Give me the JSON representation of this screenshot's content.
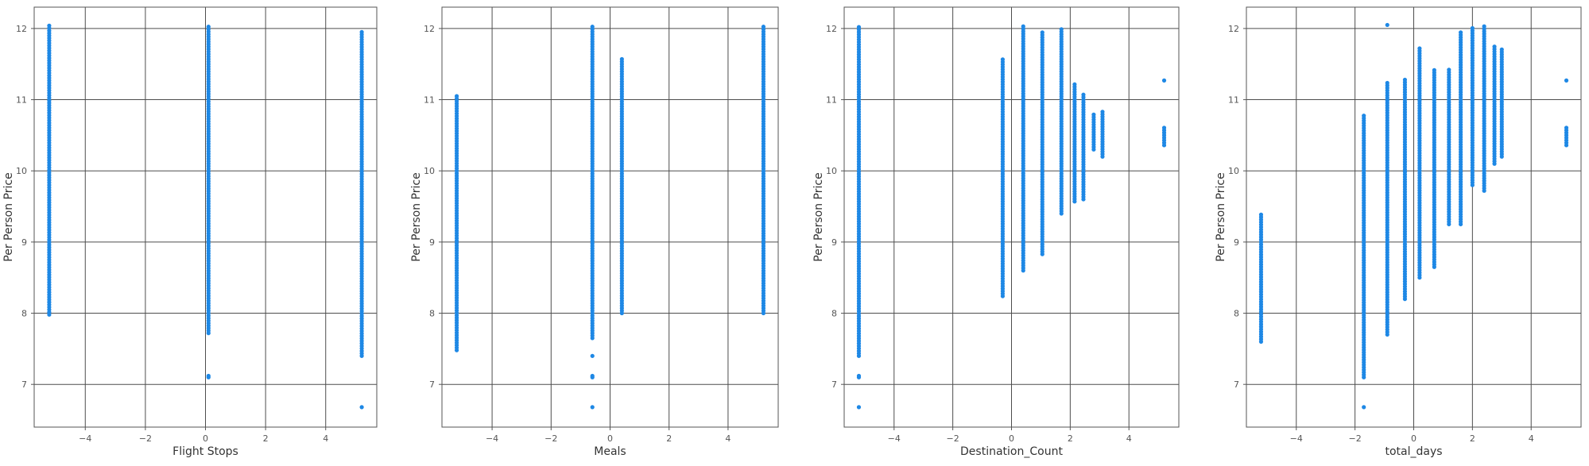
{
  "colors": {
    "point": "#1e88e5",
    "grid": "#4d4d4d",
    "frame": "#555555",
    "background": "#ffffff"
  },
  "chart_data": [
    {
      "type": "scatter",
      "xlabel": "Flight Stops",
      "ylabel": "Per Person Price",
      "xlim": [
        -5.7,
        5.7
      ],
      "ylim": [
        6.4,
        12.3
      ],
      "xticks": [
        -4,
        -2,
        0,
        2,
        4
      ],
      "yticks": [
        7,
        8,
        9,
        10,
        11,
        12
      ],
      "grid": true,
      "columns": [
        {
          "x": -5.2,
          "min": 7.98,
          "max": 12.05,
          "step": 0.035,
          "outliers": []
        },
        {
          "x": 0.1,
          "min": 7.72,
          "max": 12.05,
          "step": 0.035,
          "outliers": [
            7.1,
            7.12
          ]
        },
        {
          "x": 5.2,
          "min": 7.4,
          "max": 11.95,
          "step": 0.035,
          "outliers": [
            6.68
          ]
        }
      ]
    },
    {
      "type": "scatter",
      "xlabel": "Meals",
      "ylabel": "Per Person Price",
      "xlim": [
        -5.7,
        5.7
      ],
      "ylim": [
        6.4,
        12.3
      ],
      "xticks": [
        -4,
        -2,
        0,
        2,
        4
      ],
      "yticks": [
        7,
        8,
        9,
        10,
        11,
        12
      ],
      "grid": true,
      "columns": [
        {
          "x": -5.2,
          "min": 7.48,
          "max": 11.07,
          "step": 0.035,
          "outliers": []
        },
        {
          "x": -0.6,
          "min": 7.65,
          "max": 12.05,
          "step": 0.035,
          "outliers": [
            7.4,
            7.1,
            7.12,
            6.68
          ]
        },
        {
          "x": 0.4,
          "min": 8.0,
          "max": 11.6,
          "step": 0.035,
          "outliers": []
        },
        {
          "x": 5.2,
          "min": 8.0,
          "max": 12.05,
          "step": 0.035,
          "outliers": []
        }
      ]
    },
    {
      "type": "scatter",
      "xlabel": "Destination_Count",
      "ylabel": "Per Person Price",
      "xlim": [
        -5.7,
        5.7
      ],
      "ylim": [
        6.4,
        12.3
      ],
      "xticks": [
        -4,
        -2,
        0,
        2,
        4
      ],
      "yticks": [
        7,
        8,
        9,
        10,
        11,
        12
      ],
      "grid": true,
      "columns": [
        {
          "x": -5.2,
          "min": 7.4,
          "max": 12.05,
          "step": 0.035,
          "outliers": [
            7.1,
            7.12,
            6.68
          ]
        },
        {
          "x": -0.3,
          "min": 8.24,
          "max": 11.57,
          "step": 0.035,
          "outliers": []
        },
        {
          "x": 0.4,
          "min": 8.6,
          "max": 12.05,
          "step": 0.035,
          "outliers": []
        },
        {
          "x": 1.05,
          "min": 8.83,
          "max": 11.97,
          "step": 0.035,
          "outliers": []
        },
        {
          "x": 1.7,
          "min": 9.4,
          "max": 12.02,
          "step": 0.035,
          "outliers": []
        },
        {
          "x": 2.15,
          "min": 9.57,
          "max": 11.23,
          "step": 0.035,
          "outliers": []
        },
        {
          "x": 2.45,
          "min": 9.6,
          "max": 11.08,
          "step": 0.035,
          "outliers": []
        },
        {
          "x": 2.8,
          "min": 10.3,
          "max": 10.82,
          "step": 0.035,
          "outliers": []
        },
        {
          "x": 3.1,
          "min": 10.2,
          "max": 10.85,
          "step": 0.035,
          "outliers": []
        },
        {
          "x": 5.2,
          "min": 10.36,
          "max": 10.63,
          "step": 0.035,
          "outliers": [
            11.27
          ]
        }
      ]
    },
    {
      "type": "scatter",
      "xlabel": "total_days",
      "ylabel": "Per Person Price",
      "xlim": [
        -5.7,
        5.7
      ],
      "ylim": [
        6.4,
        12.3
      ],
      "xticks": [
        -4,
        -2,
        0,
        2,
        4
      ],
      "yticks": [
        7,
        8,
        9,
        10,
        11,
        12
      ],
      "grid": true,
      "columns": [
        {
          "x": -5.2,
          "min": 7.6,
          "max": 9.4,
          "step": 0.035,
          "outliers": []
        },
        {
          "x": -1.7,
          "min": 7.1,
          "max": 10.8,
          "step": 0.035,
          "outliers": [
            6.68
          ]
        },
        {
          "x": -0.9,
          "min": 7.7,
          "max": 11.25,
          "step": 0.035,
          "outliers": [
            12.05
          ]
        },
        {
          "x": -0.3,
          "min": 8.2,
          "max": 11.28,
          "step": 0.035,
          "outliers": []
        },
        {
          "x": 0.2,
          "min": 8.5,
          "max": 11.72,
          "step": 0.035,
          "outliers": []
        },
        {
          "x": 0.7,
          "min": 8.65,
          "max": 11.42,
          "step": 0.035,
          "outliers": []
        },
        {
          "x": 1.2,
          "min": 9.25,
          "max": 11.45,
          "step": 0.035,
          "outliers": []
        },
        {
          "x": 1.6,
          "min": 9.25,
          "max": 11.97,
          "step": 0.035,
          "outliers": []
        },
        {
          "x": 2.0,
          "min": 9.8,
          "max": 12.02,
          "step": 0.035,
          "outliers": []
        },
        {
          "x": 2.4,
          "min": 9.72,
          "max": 12.05,
          "step": 0.035,
          "outliers": []
        },
        {
          "x": 2.75,
          "min": 10.1,
          "max": 11.75,
          "step": 0.035,
          "outliers": []
        },
        {
          "x": 3.0,
          "min": 10.2,
          "max": 11.72,
          "step": 0.035,
          "outliers": []
        },
        {
          "x": 5.2,
          "min": 10.36,
          "max": 10.63,
          "step": 0.035,
          "outliers": [
            11.27
          ]
        }
      ]
    }
  ]
}
